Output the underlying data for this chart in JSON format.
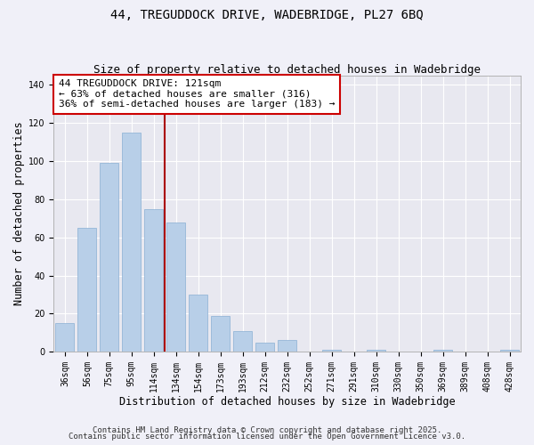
{
  "title_line1": "44, TREGUDDOCK DRIVE, WADEBRIDGE, PL27 6BQ",
  "title_line2": "Size of property relative to detached houses in Wadebridge",
  "xlabel": "Distribution of detached houses by size in Wadebridge",
  "ylabel": "Number of detached properties",
  "bar_labels": [
    "36sqm",
    "56sqm",
    "75sqm",
    "95sqm",
    "114sqm",
    "134sqm",
    "154sqm",
    "173sqm",
    "193sqm",
    "212sqm",
    "232sqm",
    "252sqm",
    "271sqm",
    "291sqm",
    "310sqm",
    "330sqm",
    "350sqm",
    "369sqm",
    "389sqm",
    "408sqm",
    "428sqm"
  ],
  "bar_values": [
    15,
    65,
    99,
    115,
    75,
    68,
    30,
    19,
    11,
    5,
    6,
    0,
    1,
    0,
    1,
    0,
    0,
    1,
    0,
    0,
    1
  ],
  "bar_color": "#b8cfe8",
  "bar_edge_color": "#8aafd4",
  "vline_color": "#aa0000",
  "vline_x": 4.5,
  "ylim": [
    0,
    145
  ],
  "yticks": [
    0,
    20,
    40,
    60,
    80,
    100,
    120,
    140
  ],
  "annotation_title": "44 TREGUDDOCK DRIVE: 121sqm",
  "annotation_line2": "← 63% of detached houses are smaller (316)",
  "annotation_line3": "36% of semi-detached houses are larger (183) →",
  "footer_line1": "Contains HM Land Registry data © Crown copyright and database right 2025.",
  "footer_line2": "Contains public sector information licensed under the Open Government Licence v3.0.",
  "background_color": "#f0f0f8",
  "plot_bg_color": "#e8e8f0",
  "grid_color": "#ffffff",
  "title_fontsize": 10,
  "subtitle_fontsize": 9,
  "axis_label_fontsize": 8.5,
  "tick_fontsize": 7,
  "annotation_fontsize": 8,
  "footer_fontsize": 6.5
}
